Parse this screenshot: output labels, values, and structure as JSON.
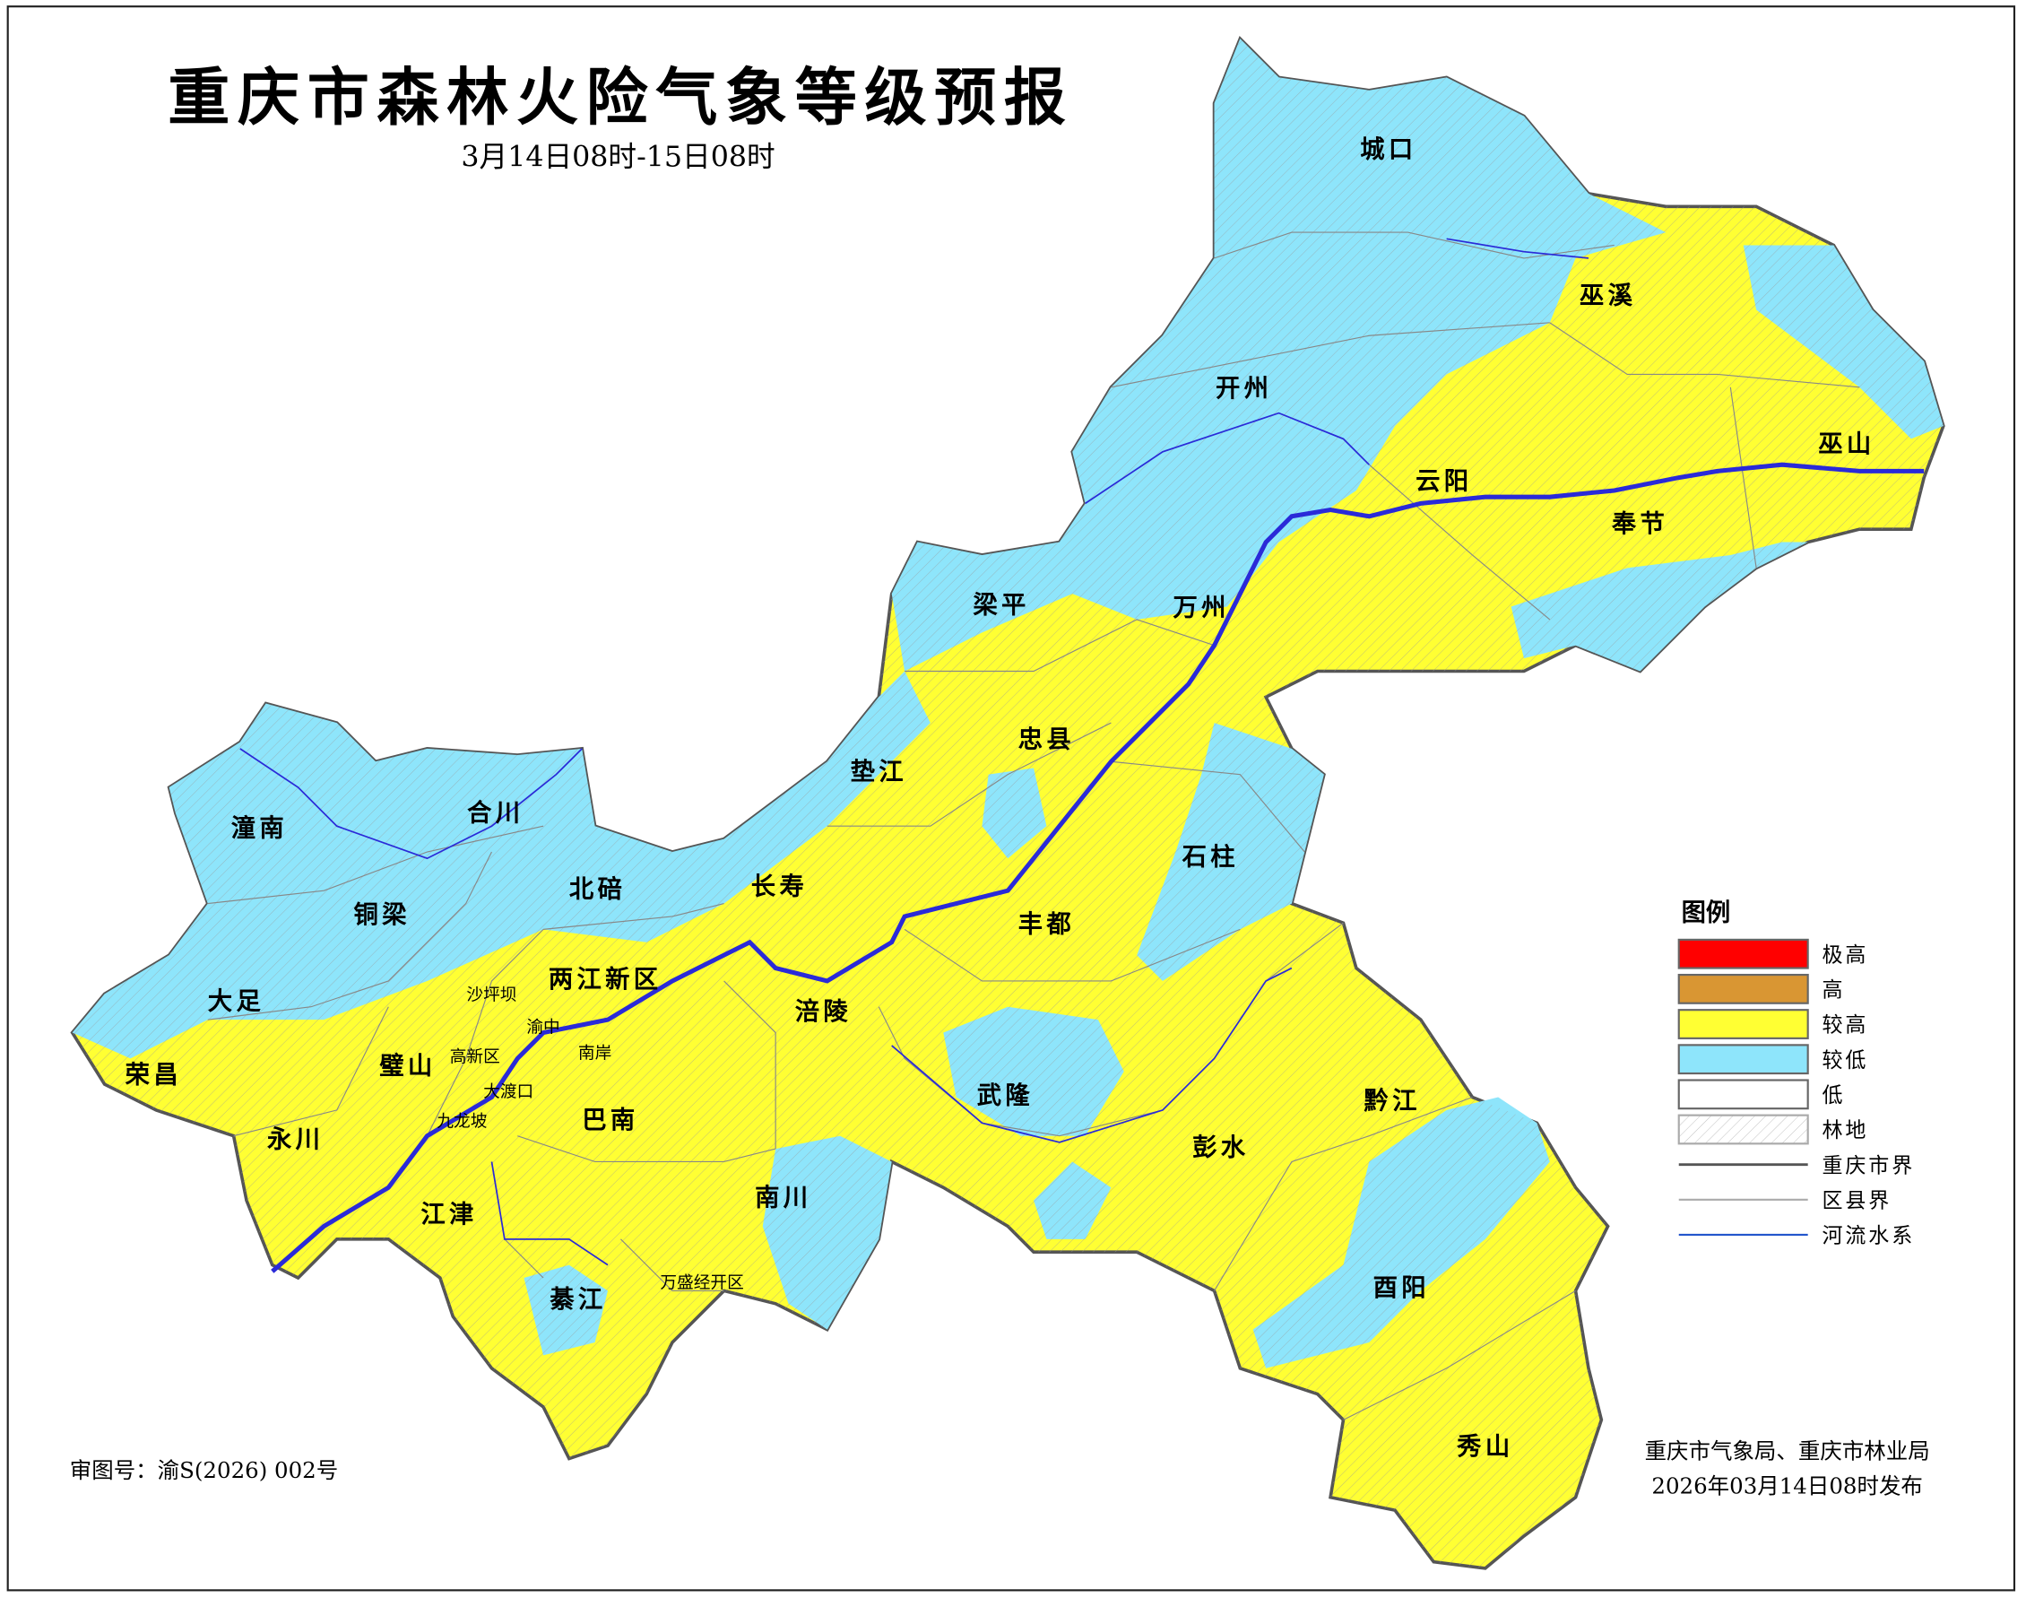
{
  "header": {
    "title": "重庆市森林火险气象等级预报",
    "subtitle": "3月14日08时-15日08时"
  },
  "colors": {
    "extreme": "#ff0000",
    "high": "#d99633",
    "fairly_high": "#ffff33",
    "fairly_low": "#8ee5fb",
    "low": "#ffffff",
    "city_border": "#555555",
    "county_border": "#aaaaaa",
    "river": "#2020dd"
  },
  "legend": {
    "title": "图例",
    "items": [
      {
        "label": "极高",
        "kind": "fill",
        "color": "#ff0000"
      },
      {
        "label": "高",
        "kind": "fill",
        "color": "#d99633"
      },
      {
        "label": "较高",
        "kind": "fill",
        "color": "#ffff33"
      },
      {
        "label": "较低",
        "kind": "fill",
        "color": "#8ee5fb"
      },
      {
        "label": "低",
        "kind": "fill",
        "color": "#ffffff"
      },
      {
        "label": "林地",
        "kind": "hatch",
        "color": "#aaaaaa"
      },
      {
        "label": "重庆市界",
        "kind": "line",
        "color": "#555555"
      },
      {
        "label": "区县界",
        "kind": "line",
        "color": "#aaaaaa"
      },
      {
        "label": "河流水系",
        "kind": "line",
        "color": "#2255cc"
      }
    ]
  },
  "labels": {
    "chengkou": "城口",
    "wuxi": "巫溪",
    "kaizhou": "开州",
    "yunyang": "云阳",
    "wushan": "巫山",
    "fengjie": "奉节",
    "liangping": "梁平",
    "wanzhou": "万州",
    "zhongxian": "忠县",
    "dianjiang": "垫江",
    "shizhu": "石柱",
    "changshou": "长寿",
    "fengdu": "丰都",
    "tongnan": "潼南",
    "hechuan": "合川",
    "beibei": "北碚",
    "tongliang": "铜梁",
    "liangjiang": "两江新区",
    "dazu": "大足",
    "fuling": "涪陵",
    "shapingba": "沙坪坝",
    "yuzhong": "渝中",
    "gaoxin": "高新区",
    "nanan": "南岸",
    "bishan": "璧山",
    "rongchang": "荣昌",
    "dadukou": "大渡口",
    "wulong": "武隆",
    "qianjiang": "黔江",
    "jiulongpo": "九龙坡",
    "banan": "巴南",
    "yongchuan": "永川",
    "pengshui": "彭水",
    "nanchuan": "南川",
    "jiangjin": "江津",
    "wansheng": "万盛经开区",
    "youyang": "酉阳",
    "qijiang": "綦江",
    "xiushan": "秀山"
  },
  "footer": {
    "approval": "审图号：渝S(2026) 002号",
    "publisher": "重庆市气象局、重庆市林业局",
    "issued": "2026年03月14日08时发布"
  }
}
